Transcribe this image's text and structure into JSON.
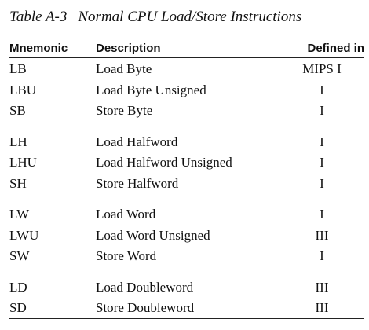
{
  "caption": {
    "label": "Table A-3",
    "title": "Normal CPU Load/Store Instructions"
  },
  "headers": {
    "mnemonic": "Mnemonic",
    "description": "Description",
    "defined_in": "Defined in"
  },
  "groups": [
    [
      {
        "mnemonic": "LB",
        "description": "Load Byte",
        "defined_in": "MIPS I"
      },
      {
        "mnemonic": "LBU",
        "description": "Load Byte Unsigned",
        "defined_in": "I"
      },
      {
        "mnemonic": "SB",
        "description": "Store Byte",
        "defined_in": "I"
      }
    ],
    [
      {
        "mnemonic": "LH",
        "description": "Load Halfword",
        "defined_in": "I"
      },
      {
        "mnemonic": "LHU",
        "description": "Load Halfword Unsigned",
        "defined_in": "I"
      },
      {
        "mnemonic": "SH",
        "description": "Store Halfword",
        "defined_in": "I"
      }
    ],
    [
      {
        "mnemonic": "LW",
        "description": "Load Word",
        "defined_in": "I"
      },
      {
        "mnemonic": "LWU",
        "description": "Load Word Unsigned",
        "defined_in": "III"
      },
      {
        "mnemonic": "SW",
        "description": "Store Word",
        "defined_in": "I"
      }
    ],
    [
      {
        "mnemonic": "LD",
        "description": "Load Doubleword",
        "defined_in": "III"
      },
      {
        "mnemonic": "SD",
        "description": "Store Doubleword",
        "defined_in": "III"
      }
    ]
  ]
}
